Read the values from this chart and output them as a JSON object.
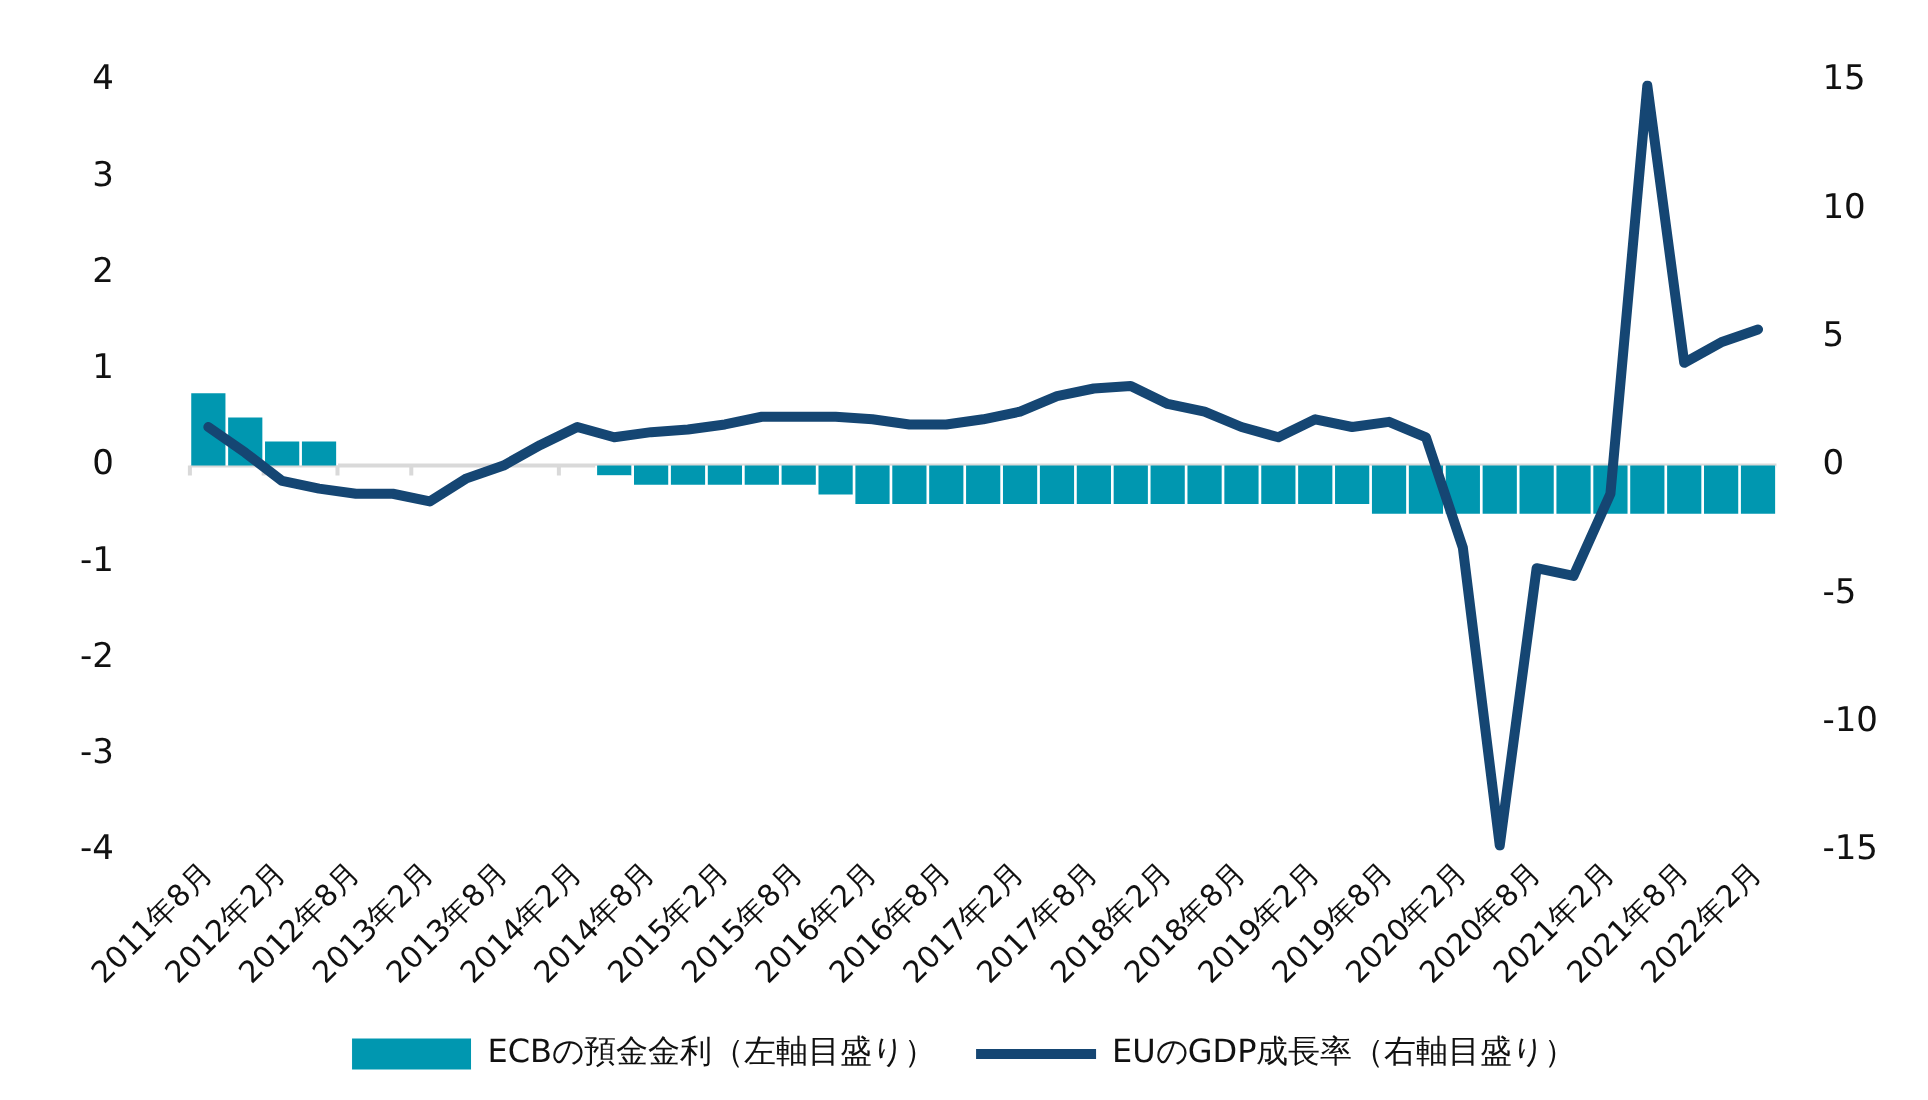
{
  "chart_data": {
    "type": "bar",
    "categories": [
      "2011年8月",
      null,
      "2012年2月",
      null,
      "2012年8月",
      null,
      "2013年2月",
      null,
      "2013年8月",
      null,
      "2014年2月",
      null,
      "2014年8月",
      null,
      "2015年2月",
      null,
      "2015年8月",
      null,
      "2016年2月",
      null,
      "2016年8月",
      null,
      "2017年2月",
      null,
      "2017年8月",
      null,
      "2018年2月",
      null,
      "2018年8月",
      null,
      "2019年2月",
      null,
      "2019年8月",
      null,
      "2020年2月",
      null,
      "2020年8月",
      null,
      "2021年2月",
      null,
      "2021年8月",
      null,
      "2022年2月"
    ],
    "series": [
      {
        "name": "ECBの預金金利（左軸目盛り）",
        "color": "#0097b0",
        "values": [
          0.75,
          0.5,
          0.25,
          0.25,
          0,
          0,
          0,
          0,
          0,
          0,
          0,
          -0.1,
          -0.2,
          -0.2,
          -0.2,
          -0.2,
          -0.2,
          -0.3,
          -0.4,
          -0.4,
          -0.4,
          -0.4,
          -0.4,
          -0.4,
          -0.4,
          -0.4,
          -0.4,
          -0.4,
          -0.4,
          -0.4,
          -0.4,
          -0.4,
          -0.5,
          -0.5,
          -0.5,
          -0.5,
          -0.5,
          -0.5,
          -0.5,
          -0.5,
          -0.5,
          -0.5,
          -0.5
        ]
      },
      {
        "name": "EUのGDP成長率（右軸目盛り）",
        "type": "line",
        "axis": "y2",
        "color": "#154673",
        "values": [
          1.5,
          0.5,
          -0.6,
          -0.9,
          -1.1,
          -1.1,
          -1.4,
          -0.5,
          0,
          0.8,
          1.5,
          1.1,
          1.3,
          1.4,
          1.6,
          1.9,
          1.9,
          1.9,
          1.8,
          1.6,
          1.6,
          1.8,
          2.1,
          2.7,
          3.0,
          3.1,
          2.4,
          2.1,
          1.5,
          1.1,
          1.8,
          1.5,
          1.7,
          1.1,
          -3.2,
          -14.8,
          -4.0,
          -4.3,
          -1.1,
          14.8,
          4.0,
          4.8,
          5.3
        ]
      }
    ],
    "ylim": [
      -4,
      4
    ],
    "yticks": [
      -4,
      -3,
      -2,
      -1,
      0,
      1,
      2,
      3,
      4
    ],
    "y2lim": [
      -15,
      15
    ],
    "y2ticks": [
      -15,
      -10,
      -5,
      0,
      5,
      10,
      15
    ],
    "ref_lines": [
      {
        "axis": "y",
        "value": 0,
        "color": "#d9d9d9"
      }
    ],
    "grid": false,
    "legend": "bottom",
    "marker": "none"
  }
}
